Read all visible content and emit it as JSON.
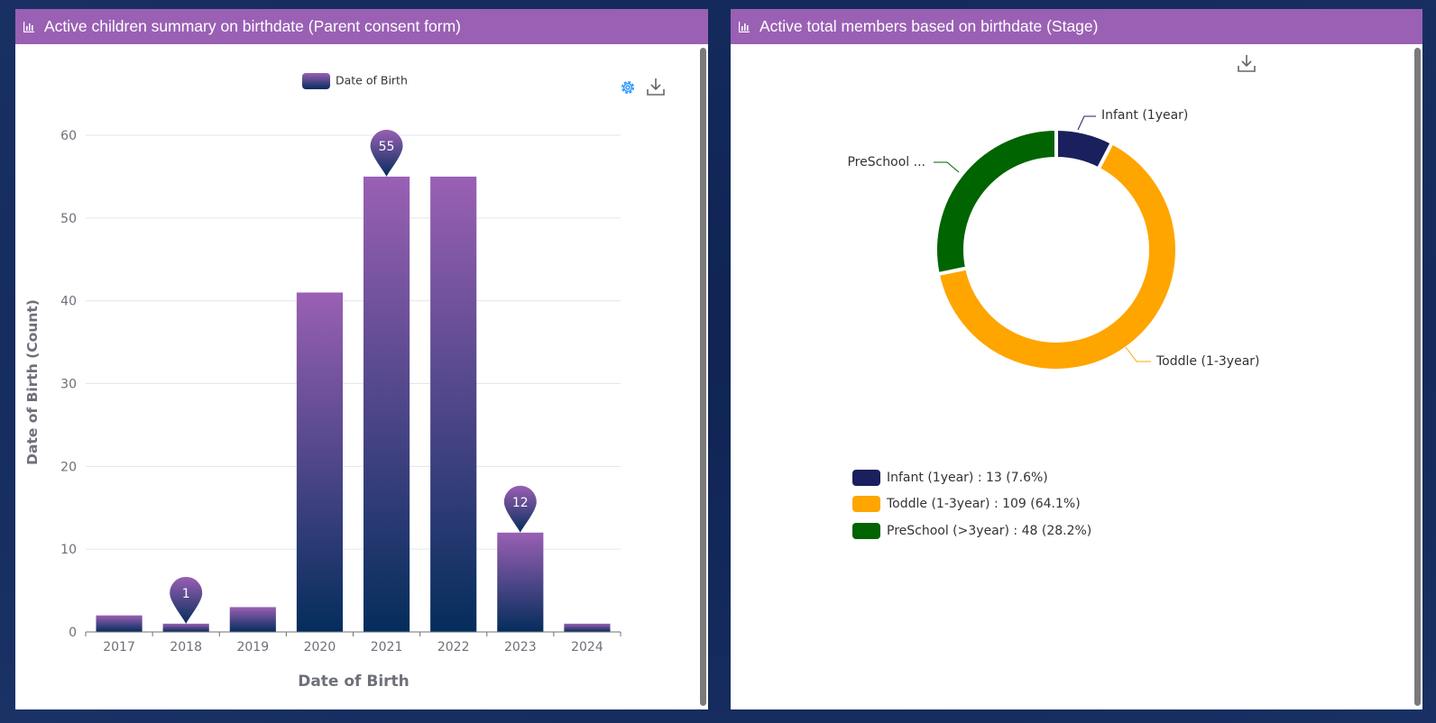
{
  "left_panel": {
    "title": "Active children summary on birthdate (Parent consent form)",
    "legend_label": "Date of Birth",
    "icons": {
      "header": "bar-chart-icon",
      "settings": "gear-icon",
      "download": "download-icon"
    }
  },
  "right_panel": {
    "title": "Active total members based on birthdate (Stage)",
    "icons": {
      "header": "bar-chart-icon",
      "download": "download-icon"
    },
    "callouts": {
      "infant": "Infant (1year)",
      "toddle": "Toddle (1-3year)",
      "preschool": "PreSchool ..."
    },
    "legend": [
      "Infant (1year) : 13 (7.6%)",
      "Toddle (1-3year) : 109 (64.1%)",
      "PreSchool (>3year) : 48 (28.2%)"
    ]
  },
  "colors": {
    "header": "#9a60b4",
    "bar_top": "#9a60b4",
    "bar_bottom": "#042d5c",
    "infant": "#1a1f5e",
    "toddle": "#ffa500",
    "preschool": "#006400"
  },
  "chart_data": [
    {
      "type": "bar",
      "title": "Active children summary on birthdate (Parent consent form)",
      "categories": [
        "2017",
        "2018",
        "2019",
        "2020",
        "2021",
        "2022",
        "2023",
        "2024"
      ],
      "series": [
        {
          "name": "Date of Birth",
          "values": [
            2,
            1,
            3,
            41,
            55,
            55,
            12,
            1
          ]
        }
      ],
      "xlabel": "Date of Birth",
      "ylabel": "Date of Birth (Count)",
      "ylim": [
        0,
        60
      ],
      "yticks": [
        0,
        10,
        20,
        30,
        40,
        50,
        60
      ],
      "markers": [
        {
          "category": "2018",
          "value": 1,
          "label": "1"
        },
        {
          "category": "2021",
          "value": 55,
          "label": "55"
        },
        {
          "category": "2023",
          "value": 12,
          "label": "12"
        }
      ],
      "grid": true,
      "legend_position": "top"
    },
    {
      "type": "pie",
      "title": "Active total members based on birthdate (Stage)",
      "labels": [
        "Infant (1year)",
        "Toddle (1-3year)",
        "PreSchool (>3year)"
      ],
      "values": [
        13,
        109,
        48
      ],
      "percentages": [
        7.6,
        64.1,
        28.2
      ],
      "donut": true,
      "legend_position": "bottom-left"
    }
  ]
}
